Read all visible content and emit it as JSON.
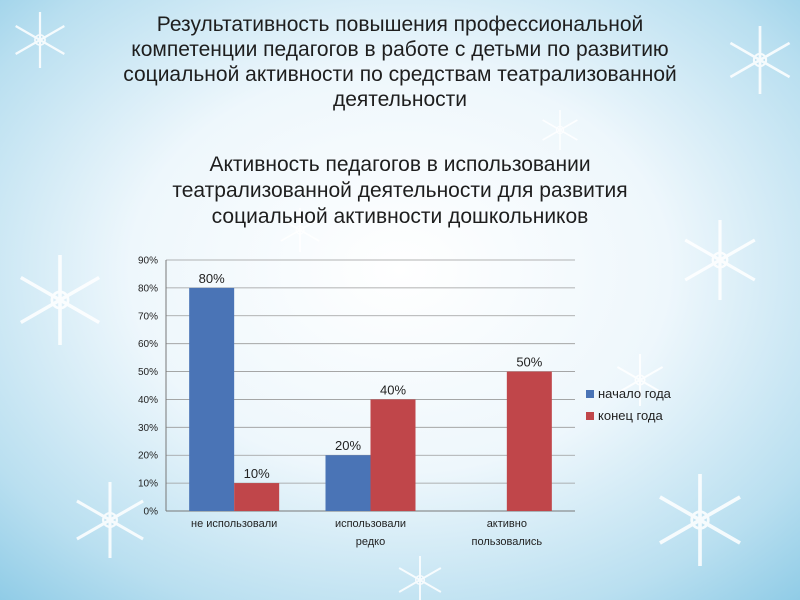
{
  "slide": {
    "title_lines": [
      "Результативность повышения профессиональной",
      "компетенции педагогов в работе с детьми по развитию",
      "социальной активности по средствам театрализованной",
      "деятельности"
    ],
    "subtitle_lines": [
      "Активность педагогов в использовании",
      "театрализованной деятельности для развития",
      "социальной активности дошкольников"
    ]
  },
  "chart_data": {
    "type": "bar",
    "categories": [
      [
        "не использовали"
      ],
      [
        "использовали",
        "редко"
      ],
      [
        "активно",
        "пользовались"
      ]
    ],
    "series": [
      {
        "name": "начало года",
        "values": [
          80,
          20,
          null
        ],
        "labels": [
          "80%",
          "20%",
          ""
        ],
        "color": "#4a74b6"
      },
      {
        "name": "конец года",
        "values": [
          10,
          40,
          50
        ],
        "labels": [
          "10%",
          "40%",
          "50%"
        ],
        "color": "#c0464a"
      }
    ],
    "yticks": [
      "0%",
      "10%",
      "20%",
      "30%",
      "40%",
      "50%",
      "60%",
      "70%",
      "80%",
      "90%"
    ],
    "ylim": [
      0,
      90
    ],
    "grid": true,
    "legend_position": "right"
  }
}
